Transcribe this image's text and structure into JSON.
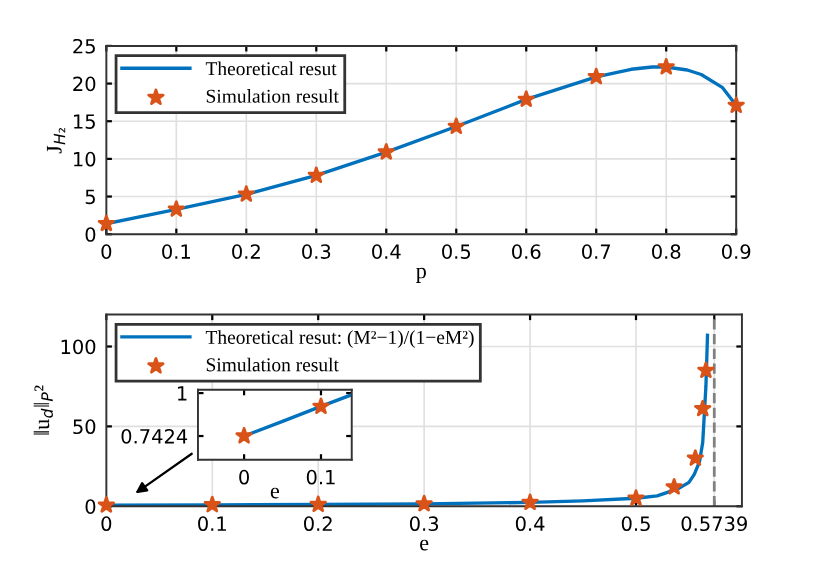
{
  "chart_data": [
    {
      "type": "line",
      "xlabel": "p",
      "ylabel": "J$_{H₂}$",
      "xlim": [
        0,
        0.9
      ],
      "ylim": [
        0,
        25
      ],
      "xticks": [
        0,
        0.1,
        0.2,
        0.3,
        0.4,
        0.5,
        0.6,
        0.7,
        0.8,
        0.9
      ],
      "yticks": [
        0,
        5,
        10,
        15,
        20,
        25
      ],
      "grid": true,
      "legend": "top left",
      "series": [
        {
          "name": "Theoretical resut",
          "color": "#0072bd",
          "marker": "none",
          "x": [
            0,
            0.1,
            0.2,
            0.3,
            0.4,
            0.5,
            0.6,
            0.7,
            0.75,
            0.78,
            0.8,
            0.83,
            0.85,
            0.88,
            0.9
          ],
          "values": [
            1.4,
            3.3,
            5.3,
            7.8,
            10.9,
            14.3,
            17.9,
            20.9,
            21.9,
            22.2,
            22.2,
            21.8,
            21.2,
            19.5,
            17.1
          ]
        },
        {
          "name": "Simulation result",
          "type": "scatter",
          "color": "#d95319",
          "marker": "star",
          "x": [
            0,
            0.1,
            0.2,
            0.3,
            0.4,
            0.5,
            0.6,
            0.7,
            0.8,
            0.9
          ],
          "values": [
            1.4,
            3.3,
            5.3,
            7.8,
            10.9,
            14.3,
            17.9,
            20.9,
            22.2,
            17.1
          ]
        }
      ]
    },
    {
      "type": "line",
      "xlabel": "e",
      "ylabel": "‖u$_{d}$‖$_{P}$²",
      "xlim": [
        0,
        0.6
      ],
      "ylim": [
        0,
        120
      ],
      "xticks": [
        0,
        0.1,
        0.2,
        0.3,
        0.4,
        0.5,
        0.5739
      ],
      "yticks": [
        0,
        50,
        100
      ],
      "grid": true,
      "legend": "top left",
      "ref_lines": [
        {
          "axis": "x",
          "value": 0.5739,
          "color": "#808080",
          "line_style": "dashed"
        }
      ],
      "series": [
        {
          "name": "Theoretical resut: (M²−1)/(1−eM²)",
          "color": "#0072bd",
          "marker": "none",
          "x": [
            0,
            0.1,
            0.2,
            0.3,
            0.4,
            0.45,
            0.5,
            0.52,
            0.54,
            0.55,
            0.555,
            0.56,
            0.563,
            0.566,
            0.5675
          ],
          "values": [
            0.7,
            0.9,
            1.1,
            1.5,
            2.4,
            3.4,
            5,
            6.5,
            11,
            15,
            20,
            28,
            40,
            75,
            107
          ]
        },
        {
          "name": "Simulation result",
          "type": "scatter",
          "color": "#d95319",
          "marker": "star",
          "x": [
            0,
            0.1,
            0.2,
            0.3,
            0.4,
            0.5,
            0.536,
            0.556,
            0.563,
            0.566
          ],
          "values": [
            0.7,
            0.9,
            1.1,
            1.5,
            2.4,
            5,
            12,
            30,
            61,
            85
          ]
        }
      ]
    },
    {
      "type": "line",
      "xlabel": "e",
      "xlim": [
        -0.06,
        0.14
      ],
      "ylim": [
        0.6,
        1.02
      ],
      "xticks": [
        0,
        0.1
      ],
      "yticks": [
        0.7424,
        1
      ],
      "series": [
        {
          "color": "#0072bd",
          "marker": "none",
          "x": [
            0,
            0.05,
            0.1,
            0.14
          ],
          "values": [
            0.7424,
            0.83,
            0.92,
            0.99
          ]
        },
        {
          "type": "scatter",
          "color": "#d95319",
          "marker": "star",
          "x": [
            0,
            0.1
          ],
          "values": [
            0.7424,
            0.92
          ]
        }
      ]
    }
  ]
}
